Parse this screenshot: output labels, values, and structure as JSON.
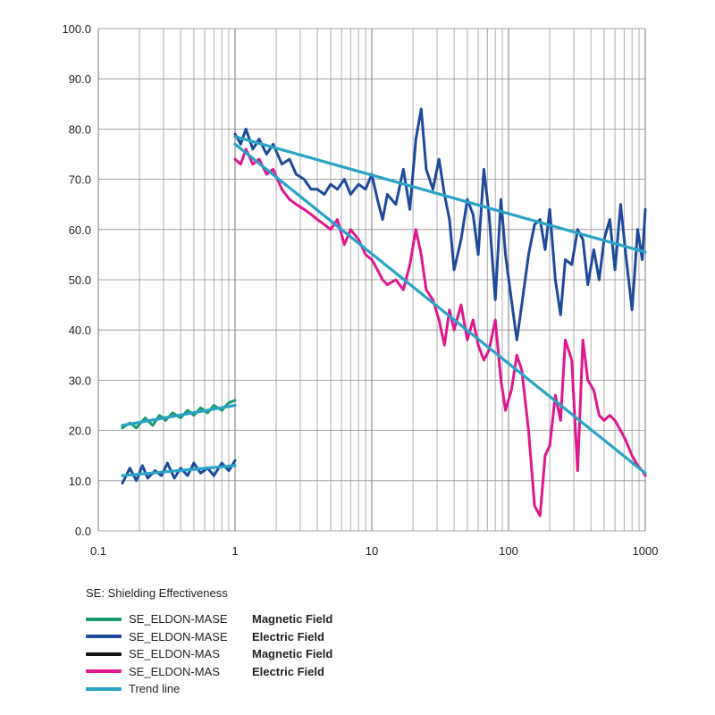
{
  "chart_data": {
    "type": "line",
    "x_scale": "log",
    "xlim": [
      0.1,
      1000
    ],
    "ylim": [
      0,
      100
    ],
    "x_ticks": [
      "0.1",
      "1",
      "10",
      "100",
      "1000"
    ],
    "y_ticks": [
      "0.0",
      "10.0",
      "20.0",
      "30.0",
      "40.0",
      "50.0",
      "60.0",
      "70.0",
      "80.0",
      "90.0",
      "100.0"
    ],
    "grid": true,
    "series": [
      {
        "name": "SE_ELDON-MASE",
        "label": "Magnetic Field",
        "color": "#1a9a6e",
        "x": [
          0.15,
          0.17,
          0.19,
          0.22,
          0.25,
          0.28,
          0.31,
          0.35,
          0.4,
          0.45,
          0.5,
          0.56,
          0.63,
          0.7,
          0.8,
          0.9,
          1.0
        ],
        "y": [
          20.5,
          21.5,
          20.5,
          22.5,
          21.0,
          23.0,
          22.0,
          23.5,
          22.5,
          24.0,
          23.0,
          24.5,
          23.5,
          25.0,
          24.0,
          25.5,
          26.0
        ]
      },
      {
        "name": "SE_ELDON-MASE",
        "label": "Electric Field",
        "color": "#1d4a9a",
        "x": [
          0.15,
          0.17,
          0.19,
          0.21,
          0.23,
          0.26,
          0.29,
          0.32,
          0.36,
          0.4,
          0.45,
          0.5,
          0.56,
          0.63,
          0.7,
          0.8,
          0.9,
          1.0
        ],
        "y": [
          9.5,
          12.5,
          10.0,
          13.0,
          10.5,
          12.0,
          11.0,
          13.5,
          10.5,
          12.5,
          11.0,
          13.5,
          11.5,
          12.5,
          11.0,
          13.5,
          12.0,
          14.0
        ],
        "segments": [
          {
            "x": [
              1.0,
              1.1,
              1.2,
              1.35,
              1.5,
              1.7,
              1.9,
              2.2,
              2.5,
              2.8,
              3.2,
              3.6,
              4.0,
              4.5,
              5.0,
              5.6,
              6.3,
              7.0,
              8.0,
              9.0,
              10,
              11,
              12,
              13,
              15,
              17,
              19,
              21,
              23,
              25,
              28,
              31,
              34,
              37,
              40,
              45,
              50,
              55,
              60,
              66,
              72,
              80,
              88,
              95,
              105,
              115,
              125,
              140,
              155,
              170,
              185,
              200,
              220,
              240,
              260,
              290,
              320,
              350,
              380,
              420,
              460,
              500,
              550,
              600,
              660,
              720,
              800,
              880,
              950,
              1000
            ],
            "y": [
              79,
              77,
              80,
              76,
              78,
              75,
              77,
              73,
              74,
              71,
              70,
              68,
              68,
              67,
              69,
              68,
              70,
              67,
              69,
              68,
              71,
              66,
              62,
              67,
              65,
              72,
              64,
              78,
              84,
              72,
              68,
              74,
              67,
              62,
              52,
              58,
              66,
              63,
              55,
              72,
              63,
              46,
              66,
              55,
              46,
              38,
              45,
              55,
              61,
              62,
              56,
              64,
              50,
              43,
              54,
              53,
              60,
              58,
              49,
              56,
              50,
              58,
              62,
              52,
              65,
              55,
              44,
              60,
              54,
              64
            ]
          }
        ]
      },
      {
        "name": "SE_ELDON-MAS",
        "label": "Magnetic Field",
        "color": "#111111",
        "x": [],
        "y": []
      },
      {
        "name": "SE_ELDON-MAS",
        "label": "Electric Field",
        "color": "#e0168f",
        "x": [
          1.0,
          1.1,
          1.2,
          1.35,
          1.5,
          1.7,
          1.9,
          2.2,
          2.5,
          2.8,
          3.2,
          3.6,
          4.0,
          4.5,
          5.0,
          5.6,
          6.3,
          7.0,
          8.0,
          9.0,
          10,
          11,
          12,
          13,
          15,
          17,
          19,
          21,
          23,
          25,
          28,
          31,
          34,
          37,
          40,
          45,
          50,
          55,
          60,
          66,
          72,
          80,
          88,
          95,
          105,
          115,
          125,
          140,
          155,
          170,
          185,
          200,
          220,
          240,
          260,
          290,
          320,
          350,
          380,
          420,
          460,
          500,
          550,
          600,
          660,
          720,
          800,
          880,
          950,
          1000
        ],
        "y": [
          74,
          73,
          76,
          73,
          74,
          71,
          72,
          68,
          66,
          65,
          64,
          63,
          62,
          61,
          60,
          62,
          57,
          60,
          58,
          55,
          54,
          52,
          50,
          49,
          50,
          48,
          53,
          60,
          55,
          48,
          46,
          42,
          37,
          44,
          40,
          45,
          38,
          42,
          37,
          34,
          36,
          42,
          30,
          24,
          28,
          35,
          32,
          20,
          5,
          3,
          15,
          17,
          27,
          22,
          38,
          34,
          12,
          38,
          30,
          28,
          23,
          22,
          23,
          22,
          20,
          18,
          15,
          13,
          12,
          11
        ]
      },
      {
        "name": "Trend line",
        "label": "",
        "color": "#29a3c8",
        "segments": [
          {
            "x": [
              0.15,
              1.0
            ],
            "y": [
              11.0,
              13.0
            ]
          },
          {
            "x": [
              0.15,
              1.0
            ],
            "y": [
              21.0,
              25.0
            ]
          },
          {
            "x": [
              1.0,
              1000
            ],
            "y": [
              78.5,
              55.5
            ]
          },
          {
            "x": [
              1.0,
              1000
            ],
            "y": [
              77.0,
              11.5
            ]
          }
        ]
      }
    ]
  },
  "legend": {
    "title": "SE: Shielding Effectiveness",
    "items": [
      {
        "name": "SE_ELDON-MASE",
        "desc": "Magnetic Field",
        "color": "#1a9a6e"
      },
      {
        "name": "SE_ELDON-MASE",
        "desc": "Electric Field",
        "color": "#1d4a9a"
      },
      {
        "name": "SE_ELDON-MAS",
        "desc": "Magnetic Field",
        "color": "#111111"
      },
      {
        "name": "SE_ELDON-MAS",
        "desc": "Electric Field",
        "color": "#e0168f"
      },
      {
        "name": "Trend line",
        "desc": "",
        "color": "#29a3c8"
      }
    ]
  }
}
